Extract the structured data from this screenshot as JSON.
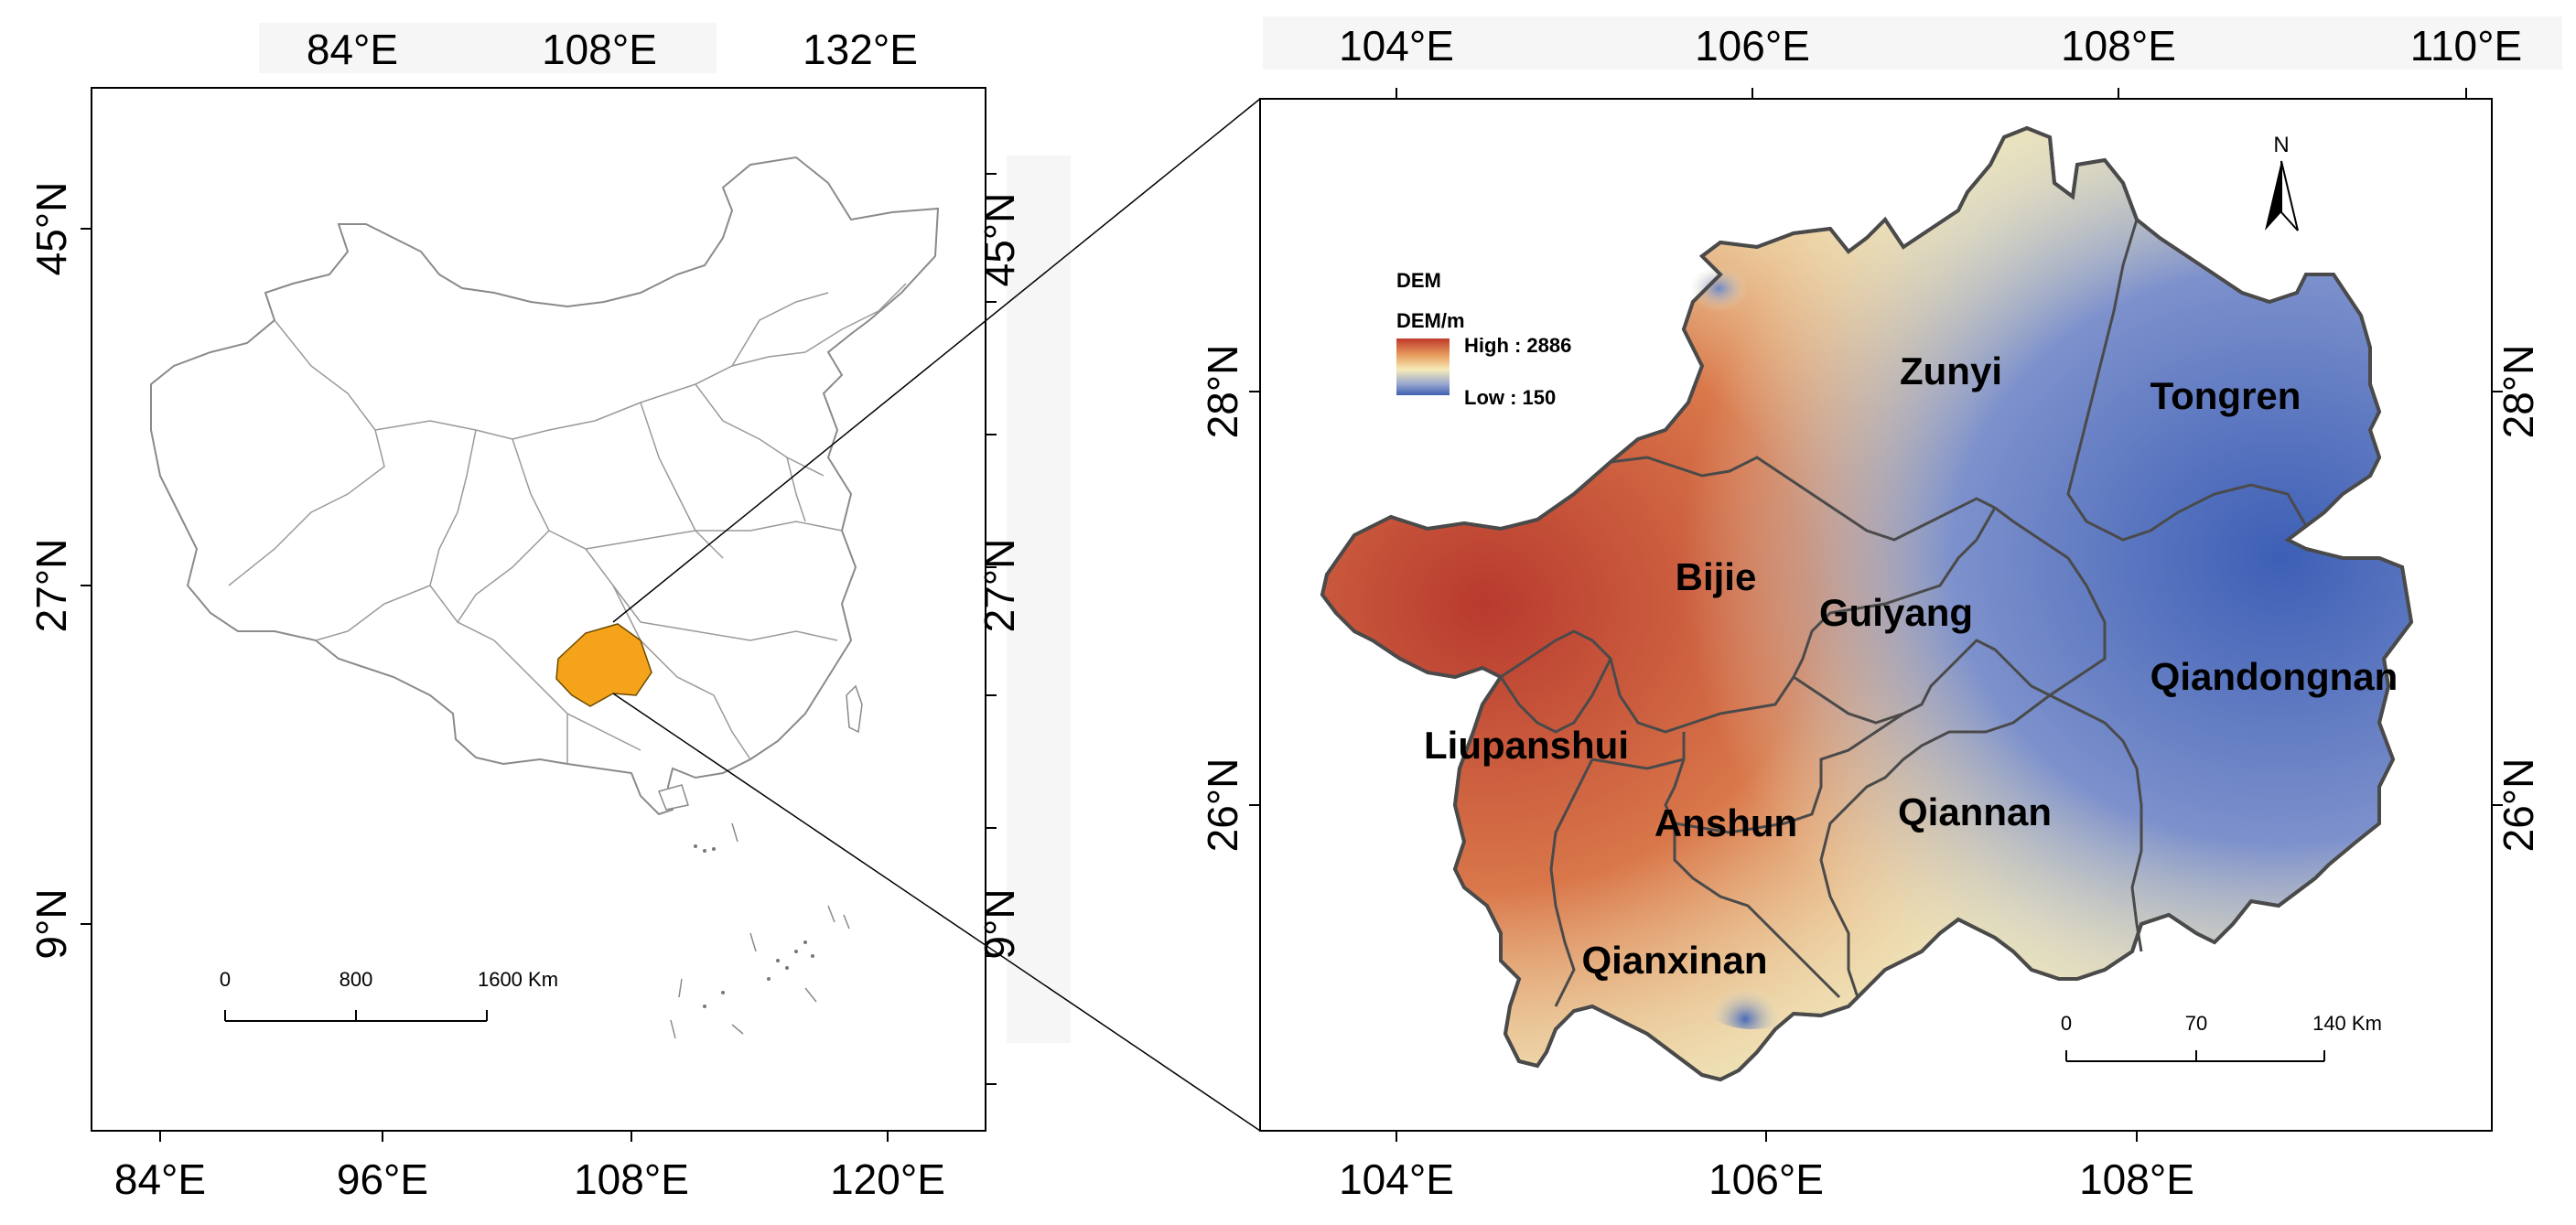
{
  "overview_map": {
    "top_axis_labels": [
      "84°E",
      "108°E",
      "132°E"
    ],
    "bottom_axis_labels": [
      "84°E",
      "96°E",
      "108°E",
      "120°E"
    ],
    "left_axis_labels": [
      "45°N",
      "27°N",
      "9°N"
    ],
    "right_axis_labels": [
      "45°N",
      "27°N",
      "9°N"
    ],
    "highlight_color": "#F5A31A",
    "scale_bar": {
      "ticks": [
        "0",
        "800",
        "1600 Km"
      ]
    }
  },
  "detail_map": {
    "top_axis_labels": [
      "104°E",
      "106°E",
      "108°E",
      "110°E"
    ],
    "bottom_axis_labels": [
      "104°E",
      "106°E",
      "108°E"
    ],
    "left_axis_labels": [
      "28°N",
      "26°N"
    ],
    "right_axis_labels": [
      "28°N",
      "26°N"
    ],
    "north_arrow": "N",
    "legend": {
      "title": "DEM",
      "subtitle": "DEM/m",
      "high": "High : 2886",
      "low": "Low : 150",
      "colors": [
        "#C0392B",
        "#E8A060",
        "#F5EBB8",
        "#9AA8D0",
        "#3E5FB0"
      ]
    },
    "regions": [
      "Zunyi",
      "Tongren",
      "Bijie",
      "Guiyang",
      "Qiandongnan",
      "Liupanshui",
      "Anshun",
      "Qiannan",
      "Qianxinan"
    ],
    "scale_bar": {
      "ticks": [
        "0",
        "70",
        "140 Km"
      ]
    }
  }
}
